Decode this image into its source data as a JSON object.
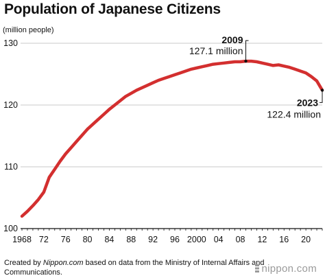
{
  "title": "Population of Japanese Citizens",
  "unit_label": "(million people)",
  "footer": {
    "prefix": "Created by ",
    "site": "Nippon.com",
    "suffix": " based on data from the Ministry of Internal Affairs and Communications."
  },
  "logo": "nippon.com",
  "colors": {
    "line": "#d32f2f",
    "grid": "#c8c8c8",
    "axis": "#111111"
  },
  "chart_data": {
    "type": "line",
    "title": "Population of Japanese Citizens",
    "ylabel": "(million people)",
    "xlabel": "",
    "xlim": [
      1968,
      2023
    ],
    "ylim": [
      100,
      130
    ],
    "yticks": [
      100,
      110,
      120,
      130
    ],
    "x_tick_values": [
      1968,
      1972,
      1976,
      1980,
      1984,
      1988,
      1992,
      1996,
      2000,
      2004,
      2008,
      2012,
      2016,
      2020
    ],
    "x_tick_labels": [
      "1968",
      "72",
      "76",
      "80",
      "84",
      "88",
      "92",
      "96",
      "2000",
      "04",
      "08",
      "12",
      "16",
      "20"
    ],
    "grid": "horizontal",
    "series": [
      {
        "x": [
          1968,
          1969,
          1970,
          1971,
          1972,
          1973,
          1974,
          1975,
          1976,
          1977,
          1978,
          1979,
          1980,
          1981,
          1982,
          1983,
          1984,
          1985,
          1986,
          1987,
          1988,
          1989,
          1990,
          1991,
          1992,
          1993,
          1994,
          1995,
          1996,
          1997,
          1998,
          1999,
          2000,
          2001,
          2002,
          2003,
          2004,
          2005,
          2006,
          2007,
          2008,
          2009,
          2010,
          2011,
          2012,
          2013,
          2014,
          2015,
          2016,
          2017,
          2018,
          2019,
          2020,
          2021,
          2022,
          2023
        ],
        "y": [
          102.0,
          102.8,
          103.7,
          104.7,
          105.9,
          108.3,
          109.6,
          110.9,
          112.1,
          113.1,
          114.1,
          115.1,
          116.1,
          116.9,
          117.7,
          118.5,
          119.3,
          120.0,
          120.7,
          121.4,
          121.9,
          122.4,
          122.8,
          123.2,
          123.6,
          124.0,
          124.3,
          124.6,
          124.9,
          125.2,
          125.5,
          125.8,
          126.0,
          126.2,
          126.4,
          126.6,
          126.7,
          126.8,
          126.9,
          127.0,
          127.0,
          127.1,
          127.1,
          127.0,
          126.8,
          126.6,
          126.4,
          126.5,
          126.3,
          126.1,
          125.8,
          125.5,
          125.2,
          124.6,
          123.9,
          122.4
        ]
      }
    ],
    "annotations": [
      {
        "year": "2009",
        "value": "127.1 million",
        "x": 2009,
        "y": 127.1
      },
      {
        "year": "2023",
        "value": "122.4 million",
        "x": 2023,
        "y": 122.4
      }
    ]
  }
}
